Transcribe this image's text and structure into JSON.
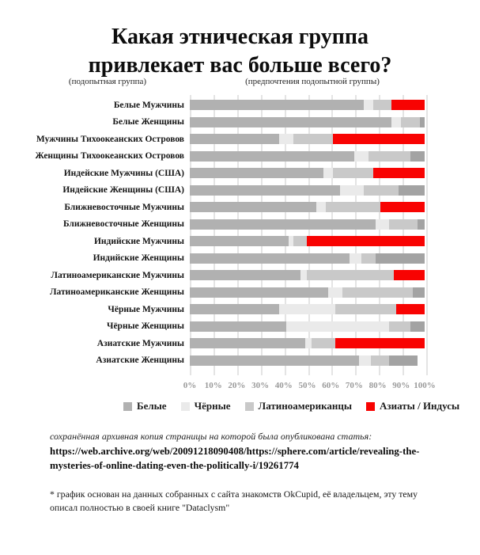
{
  "title": {
    "line1": "Какая этническая группа",
    "line2": "привлекает вас больше всего?"
  },
  "headers": {
    "left": "(подопытная группа)",
    "right": "(предпочтения подопытной группы)"
  },
  "chart_data": {
    "type": "bar",
    "orientation": "horizontal",
    "stacked": true,
    "xlim": [
      0,
      100
    ],
    "grid": "vertical",
    "x_ticks": [
      "0%",
      "10%",
      "20%",
      "30%",
      "40%",
      "50%",
      "60%",
      "70%",
      "80%",
      "90%",
      "100%"
    ],
    "legend_position": "bottom",
    "legend": [
      {
        "name": "white",
        "label": "Белые",
        "color": "#b1b1b1"
      },
      {
        "name": "black",
        "label": "Чёрные",
        "color": "#eaeaea"
      },
      {
        "name": "latino",
        "label": "Латиноамериканцы",
        "color": "#c9c9c9"
      },
      {
        "name": "asian",
        "label": "Азиаты / Индусы",
        "color": "#f80302"
      }
    ],
    "colors": {
      "white": "#b1b1b1",
      "black": "#eaeaea",
      "latino": "#c9c9c9",
      "asian_men_red": "#f80302",
      "asian_women_gray": "#a3a3a3"
    },
    "note": "asian/indian segment is highlighted red for men rows and drawn gray for women rows",
    "rows": [
      {
        "label": "Белые Мужчины",
        "gender": "m",
        "values": {
          "white": 74,
          "black": 4,
          "latino": 8,
          "asian": 14
        }
      },
      {
        "label": "Белые Женщины",
        "gender": "f",
        "values": {
          "white": 86,
          "black": 4,
          "latino": 8,
          "asian": 2
        }
      },
      {
        "label": "Мужчины Тихоокеанских Островов",
        "gender": "m",
        "values": {
          "white": 38,
          "black": 6,
          "latino": 17,
          "asian": 39
        }
      },
      {
        "label": "Женщины Тихоокеанских Островов",
        "gender": "f",
        "values": {
          "white": 70,
          "black": 6,
          "latino": 18,
          "asian": 6
        }
      },
      {
        "label": "Индейские Мужчины (США)",
        "gender": "m",
        "values": {
          "white": 57,
          "black": 4,
          "latino": 17,
          "asian": 22
        }
      },
      {
        "label": "Индейские Женщины (США)",
        "gender": "f",
        "values": {
          "white": 64,
          "black": 10,
          "latino": 15,
          "asian": 11
        }
      },
      {
        "label": "Ближневосточные Мужчины",
        "gender": "m",
        "values": {
          "white": 54,
          "black": 4,
          "latino": 23,
          "asian": 19
        }
      },
      {
        "label": "Ближневосточные Женщины",
        "gender": "f",
        "values": {
          "white": 79,
          "black": 6,
          "latino": 12,
          "asian": 3
        }
      },
      {
        "label": "Индийские Мужчины",
        "gender": "m",
        "values": {
          "white": 42,
          "black": 2,
          "latino": 6,
          "asian": 50
        }
      },
      {
        "label": "Индийские Женщины",
        "gender": "f",
        "values": {
          "white": 68,
          "black": 5,
          "latino": 6,
          "asian": 21
        }
      },
      {
        "label": "Латиноамериканские Мужчины",
        "gender": "m",
        "values": {
          "white": 47,
          "black": 3,
          "latino": 37,
          "asian": 13
        }
      },
      {
        "label": "Латиноамериканские Женщины",
        "gender": "f",
        "values": {
          "white": 59,
          "black": 6,
          "latino": 30,
          "asian": 5
        }
      },
      {
        "label": "Чёрные Мужчины",
        "gender": "m",
        "values": {
          "white": 38,
          "black": 24,
          "latino": 26,
          "asian": 12
        }
      },
      {
        "label": "Чёрные Женщины",
        "gender": "f",
        "values": {
          "white": 41,
          "black": 44,
          "latino": 9,
          "asian": 6
        }
      },
      {
        "label": "Азиатские Мужчины",
        "gender": "m",
        "values": {
          "white": 49,
          "black": 3,
          "latino": 10,
          "asian": 38
        }
      },
      {
        "label": "Азиатские Женщины",
        "gender": "f",
        "values": {
          "white": 72,
          "black": 5,
          "latino": 8,
          "asian": 12
        }
      }
    ]
  },
  "footer": {
    "archive_note": "сохранённая архивная копия страницы на которой была опубликована статья:",
    "archive_url": "https://web.archive.org/web/20091218090408/https://sphere.com/article/revealing-the-mysteries-of-online-dating-even-the-politically-i/19261774",
    "source_note": "* график основан на данных собранных с сайта знакомств OkCupid, её владельцем, эту тему описал полностью в своей книге \"Dataclysm\""
  }
}
